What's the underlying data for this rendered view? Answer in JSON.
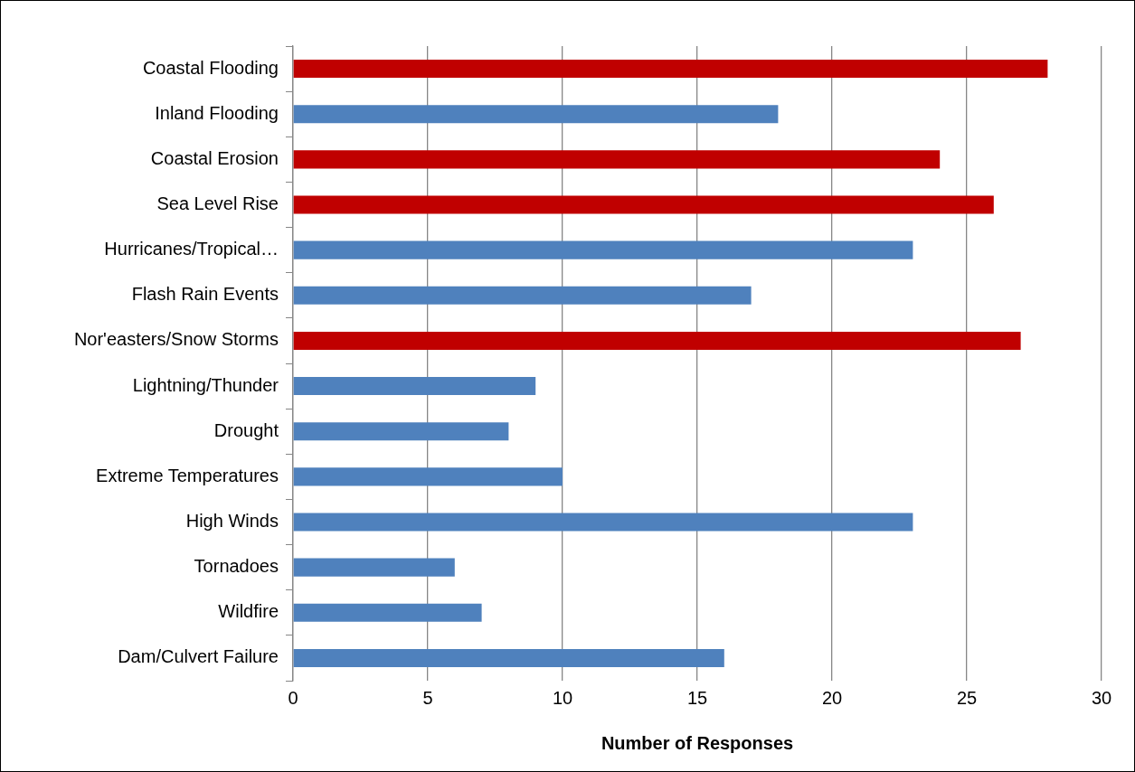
{
  "chart_data": {
    "type": "bar",
    "orientation": "horizontal",
    "categories": [
      "Coastal Flooding",
      "Inland Flooding",
      "Coastal Erosion",
      "Sea Level Rise",
      "Hurricanes/Tropical…",
      "Flash Rain Events",
      "Nor'easters/Snow Storms",
      "Lightning/Thunder",
      "Drought",
      "Extreme Temperatures",
      "High Winds",
      "Tornadoes",
      "Wildfire",
      "Dam/Culvert Failure"
    ],
    "values": [
      28,
      18,
      24,
      26,
      23,
      17,
      27,
      9,
      8,
      10,
      23,
      6,
      7,
      16
    ],
    "colors": [
      "#c00000",
      "#4f81bd",
      "#c00000",
      "#c00000",
      "#4f81bd",
      "#4f81bd",
      "#c00000",
      "#4f81bd",
      "#4f81bd",
      "#4f81bd",
      "#4f81bd",
      "#4f81bd",
      "#4f81bd",
      "#4f81bd"
    ],
    "xlabel": "Number of Responses",
    "xlim": [
      0,
      30
    ],
    "xticks": [
      0,
      5,
      10,
      15,
      20,
      25,
      30
    ],
    "grid": "x",
    "legend": false
  }
}
